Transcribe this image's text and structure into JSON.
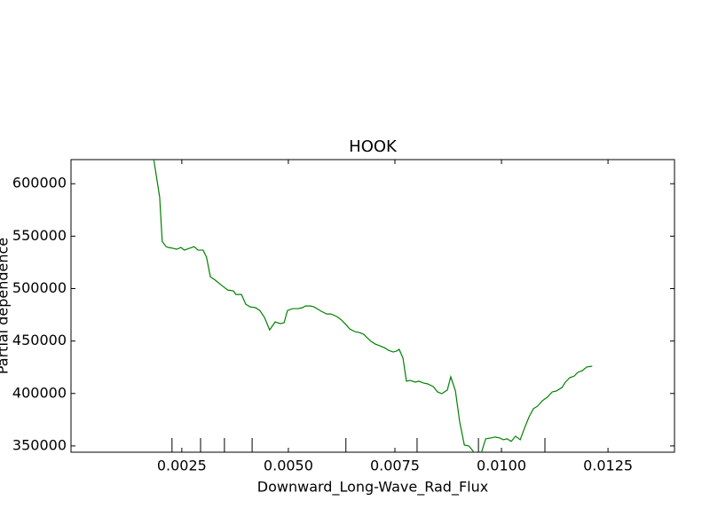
{
  "chart_data": {
    "type": "line",
    "title": "HOOK",
    "xlabel": "Downward_Long-Wave_Rad_Flux",
    "ylabel": "Partial dependence",
    "color": "#008000",
    "xlim": [
      -0.0001,
      0.01406
    ],
    "ylim": [
      344000,
      623000
    ],
    "xticks": [
      0.0025,
      {
        "value": 0.005,
        "label": "0.0050"
      },
      0.0075,
      {
        "value": 0.01,
        "label": "0.0100"
      },
      0.0125
    ],
    "yticks": [
      350000,
      400000,
      450000,
      500000,
      550000,
      600000
    ],
    "deciles": [
      0.00227,
      0.00294,
      0.0035,
      0.00415,
      0.00635,
      0.00802,
      0.00946,
      0.01102
    ],
    "x": [
      0.00181,
      0.00198,
      0.00204,
      0.00213,
      0.00219,
      0.00231,
      0.00238,
      0.00248,
      0.00256,
      0.00267,
      0.00279,
      0.00288,
      0.003,
      0.00308,
      0.00317,
      0.00329,
      0.00344,
      0.00358,
      0.00371,
      0.00377,
      0.0039,
      0.004,
      0.0041,
      0.00423,
      0.00433,
      0.00444,
      0.00456,
      0.00469,
      0.00481,
      0.0049,
      0.00498,
      0.0051,
      0.00523,
      0.00533,
      0.0054,
      0.00552,
      0.0056,
      0.00567,
      0.00577,
      0.0059,
      0.006,
      0.0061,
      0.00617,
      0.00625,
      0.00635,
      0.00644,
      0.00656,
      0.00667,
      0.00677,
      0.00683,
      0.00694,
      0.00704,
      0.00715,
      0.00725,
      0.00735,
      0.00746,
      0.00754,
      0.0076,
      0.00769,
      0.00777,
      0.00785,
      0.00798,
      0.00806,
      0.00817,
      0.00827,
      0.0084,
      0.0085,
      0.0086,
      0.00873,
      0.00881,
      0.00892,
      0.00902,
      0.00913,
      0.00923,
      0.00929,
      0.00938,
      0.00952,
      0.00963,
      0.00975,
      0.00985,
      0.00996,
      0.01004,
      0.01013,
      0.01023,
      0.01033,
      0.01044,
      0.01054,
      0.01065,
      0.01075,
      0.01085,
      0.01096,
      0.01108,
      0.01119,
      0.01129,
      0.01142,
      0.0115,
      0.0116,
      0.01171,
      0.01179,
      0.0119,
      0.012,
      0.01213
    ],
    "values": [
      631300,
      587300,
      545100,
      540000,
      539200,
      538300,
      537500,
      539200,
      536700,
      538300,
      540000,
      536700,
      536700,
      529900,
      511300,
      507900,
      502900,
      498600,
      497800,
      494400,
      494400,
      485100,
      482600,
      481800,
      479100,
      472500,
      460600,
      468200,
      466600,
      467400,
      479100,
      480900,
      480900,
      481800,
      483400,
      483400,
      482600,
      480900,
      478400,
      475800,
      475800,
      474100,
      472500,
      469900,
      465700,
      461500,
      459000,
      458100,
      456400,
      453900,
      449700,
      447100,
      445400,
      443700,
      441200,
      439500,
      440400,
      442100,
      433600,
      411700,
      412500,
      410800,
      411700,
      410000,
      409100,
      406600,
      401500,
      399800,
      403300,
      415900,
      402400,
      372800,
      350800,
      350000,
      347400,
      342400,
      342400,
      356800,
      357600,
      358500,
      357600,
      355900,
      356800,
      354300,
      359300,
      355900,
      366900,
      377900,
      385500,
      388000,
      393100,
      396500,
      401500,
      402400,
      405700,
      410800,
      415000,
      416700,
      420100,
      421800,
      425200,
      426000
    ]
  }
}
